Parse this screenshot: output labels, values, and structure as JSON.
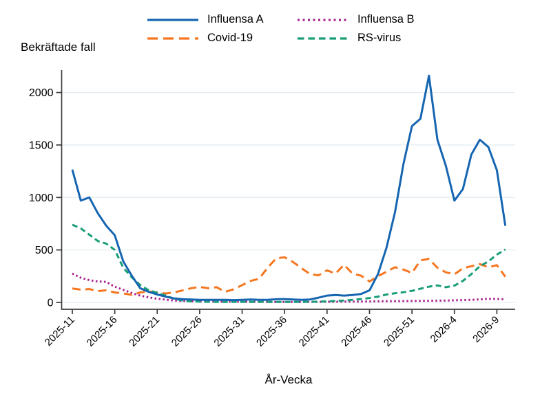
{
  "chart": {
    "title": "Bekräftade fall",
    "xlabel": "År-Vecka"
  },
  "legend": {
    "items": [
      {
        "label": "Influensa A"
      },
      {
        "label": "Influensa B"
      },
      {
        "label": "Covid-19"
      },
      {
        "label": "RS-virus"
      }
    ]
  },
  "colors": {
    "gridline": "#e4edf2",
    "axis": "#3d3d3d",
    "text": "#000000",
    "influensa_a": "#1565b1",
    "covid_19": "#f57620",
    "influensa_b": "#a8218e",
    "rs_virus": "#189d77"
  },
  "chart_data": {
    "type": "line",
    "title": "Bekräftade fall",
    "xlabel": "År-Vecka",
    "ylabel": "",
    "ylim": [
      0,
      2200
    ],
    "yticks": [
      0,
      500,
      1000,
      1500,
      2000
    ],
    "grid": "horizontal",
    "legend_position": "top-center",
    "xtick_every": 5,
    "xtick_labels_shown": [
      "2025-11",
      "2025-16",
      "2025-21",
      "2025-26",
      "2025-31",
      "2025-36",
      "2025-41",
      "2025-46",
      "2025-51",
      "2026-4",
      "2026-9"
    ],
    "x": [
      "2025-11",
      "2025-12",
      "2025-13",
      "2025-14",
      "2025-15",
      "2025-16",
      "2025-17",
      "2025-18",
      "2025-19",
      "2025-20",
      "2025-21",
      "2025-22",
      "2025-23",
      "2025-24",
      "2025-25",
      "2025-26",
      "2025-27",
      "2025-28",
      "2025-29",
      "2025-30",
      "2025-31",
      "2025-32",
      "2025-33",
      "2025-34",
      "2025-35",
      "2025-36",
      "2025-37",
      "2025-38",
      "2025-39",
      "2025-40",
      "2025-41",
      "2025-42",
      "2025-43",
      "2025-44",
      "2025-45",
      "2025-46",
      "2025-47",
      "2025-48",
      "2025-49",
      "2025-50",
      "2025-51",
      "2025-52",
      "2026-1",
      "2026-2",
      "2026-3",
      "2026-4",
      "2026-5",
      "2026-6",
      "2026-7",
      "2026-8",
      "2026-9",
      "2026-10"
    ],
    "series": [
      {
        "name": "Influensa A",
        "color": "#1565b1",
        "style": "solid",
        "values": [
          1265,
          970,
          1000,
          850,
          730,
          640,
          390,
          255,
          135,
          100,
          75,
          55,
          38,
          30,
          28,
          25,
          25,
          25,
          25,
          22,
          25,
          28,
          25,
          25,
          30,
          32,
          28,
          25,
          28,
          45,
          65,
          70,
          65,
          70,
          80,
          115,
          270,
          520,
          860,
          1320,
          1680,
          1750,
          2160,
          1550,
          1300,
          970,
          1080,
          1410,
          1550,
          1480,
          1260,
          730
        ]
      },
      {
        "name": "Covid-19",
        "color": "#f57620",
        "style": "long-dash",
        "values": [
          133,
          122,
          127,
          108,
          115,
          95,
          85,
          72,
          95,
          105,
          95,
          85,
          95,
          115,
          135,
          148,
          135,
          145,
          100,
          125,
          165,
          205,
          225,
          330,
          420,
          430,
          385,
          325,
          270,
          258,
          305,
          275,
          358,
          275,
          255,
          200,
          250,
          292,
          335,
          313,
          280,
          400,
          415,
          330,
          287,
          268,
          325,
          345,
          365,
          335,
          355,
          245
        ]
      },
      {
        "name": "Influensa B",
        "color": "#a8218e",
        "style": "dotted",
        "values": [
          275,
          235,
          212,
          200,
          195,
          150,
          120,
          90,
          65,
          48,
          35,
          26,
          18,
          14,
          12,
          10,
          9,
          8,
          8,
          7,
          7,
          6,
          6,
          5,
          5,
          5,
          5,
          5,
          5,
          5,
          6,
          6,
          7,
          7,
          8,
          9,
          10,
          11,
          12,
          13,
          14,
          15,
          16,
          17,
          18,
          20,
          22,
          25,
          28,
          35,
          32,
          30
        ]
      },
      {
        "name": "RS-virus",
        "color": "#189d77",
        "style": "dashed",
        "values": [
          740,
          705,
          645,
          585,
          560,
          500,
          330,
          240,
          165,
          115,
          92,
          65,
          35,
          18,
          10,
          8,
          6,
          5,
          5,
          5,
          5,
          5,
          5,
          5,
          5,
          5,
          5,
          5,
          6,
          8,
          10,
          14,
          18,
          25,
          32,
          42,
          55,
          75,
          87,
          97,
          110,
          130,
          150,
          162,
          145,
          160,
          205,
          270,
          345,
          390,
          455,
          505
        ]
      }
    ]
  }
}
